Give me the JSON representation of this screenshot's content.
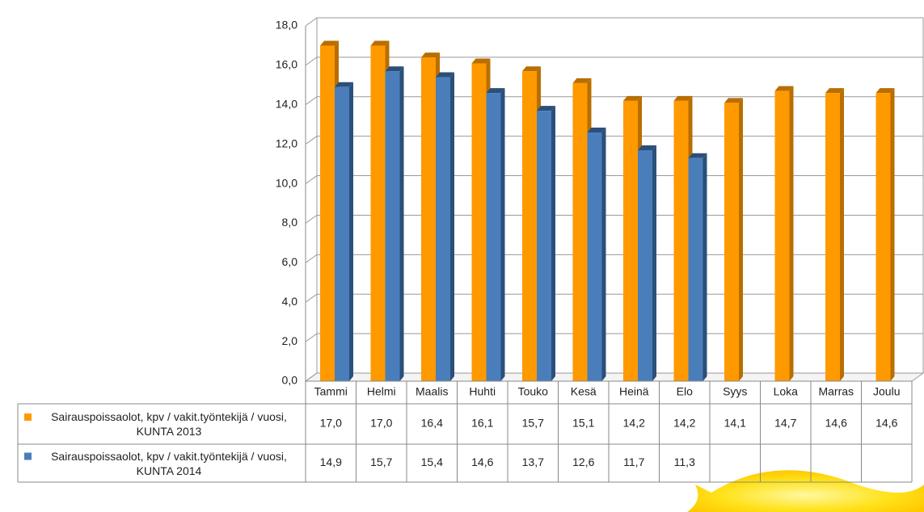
{
  "chart_data": {
    "type": "bar",
    "categories": [
      "Tammi",
      "Helmi",
      "Maalis",
      "Huhti",
      "Touko",
      "Kesä",
      "Heinä",
      "Elo",
      "Syys",
      "Loka",
      "Marras",
      "Joulu"
    ],
    "series": [
      {
        "name": "Sairauspoissaolot, kpv / vakit.työntekijä / vuosi, KUNTA 2013",
        "color": "#ff9900",
        "values": [
          17.0,
          17.0,
          16.4,
          16.1,
          15.7,
          15.1,
          14.2,
          14.2,
          14.1,
          14.7,
          14.6,
          14.6
        ],
        "value_labels": [
          "17,0",
          "17,0",
          "16,4",
          "16,1",
          "15,7",
          "15,1",
          "14,2",
          "14,2",
          "14,1",
          "14,7",
          "14,6",
          "14,6"
        ]
      },
      {
        "name": "Sairauspoissaolot, kpv / vakit.työntekijä / vuosi, KUNTA 2014",
        "color": "#4a7ebb",
        "values": [
          14.9,
          15.7,
          15.4,
          14.6,
          13.7,
          12.6,
          11.7,
          11.3,
          null,
          null,
          null,
          null
        ],
        "value_labels": [
          "14,9",
          "15,7",
          "15,4",
          "14,6",
          "13,7",
          "12,6",
          "11,7",
          "11,3",
          null,
          null,
          null,
          null
        ]
      }
    ],
    "ylim": [
      0,
      18
    ],
    "yticks": [
      {
        "value": 0,
        "label": "0,0"
      },
      {
        "value": 2,
        "label": "2,0"
      },
      {
        "value": 4,
        "label": "4,0"
      },
      {
        "value": 6,
        "label": "6,0"
      },
      {
        "value": 8,
        "label": "8,0"
      },
      {
        "value": 10,
        "label": "10,0"
      },
      {
        "value": 12,
        "label": "12,0"
      },
      {
        "value": 14,
        "label": "14,0"
      },
      {
        "value": 16,
        "label": "16,0"
      },
      {
        "value": 18,
        "label": "18,0"
      }
    ],
    "grid": true
  }
}
